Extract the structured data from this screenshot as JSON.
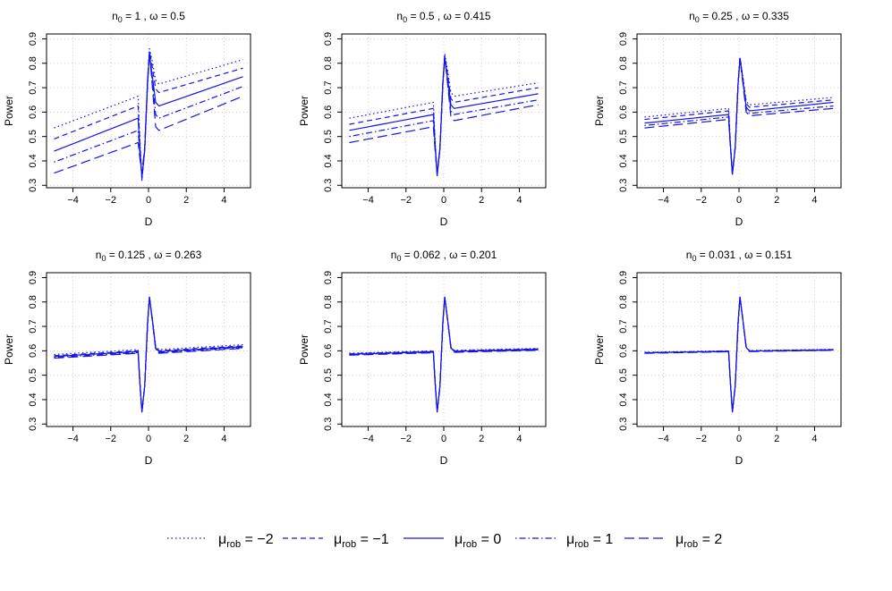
{
  "figure": {
    "legend_position": "bottom",
    "line_color": "#1414E6",
    "grid_color": "#BEBEBE",
    "legend": {
      "symbol": "μ",
      "subscript": "rob",
      "items": [
        {
          "value": "−2",
          "dash": "dotted"
        },
        {
          "value": "−1",
          "dash": "dashed"
        },
        {
          "value": "0",
          "dash": "solid"
        },
        {
          "value": "1",
          "dash": "dotdash"
        },
        {
          "value": "2",
          "dash": "longdash"
        }
      ]
    }
  },
  "chart_data": [
    {
      "type": "line",
      "title": {
        "n0": "1",
        "omega": "0.5"
      },
      "xlabel": "D",
      "ylabel": "Power",
      "xlim": [
        -5.4,
        5.4
      ],
      "ylim": [
        0.29,
        0.92
      ],
      "xticks": [
        -4,
        -2,
        0,
        2,
        4
      ],
      "yticks": [
        0.3,
        0.4,
        0.5,
        0.6,
        0.7,
        0.8,
        0.9
      ],
      "grid": true,
      "series": [
        {
          "name": "μrob = −2",
          "mu": -2,
          "left": [
            0.535,
            0.665
          ],
          "right": [
            0.715,
            0.815
          ],
          "dip": 0.32,
          "peak": 0.86
        },
        {
          "name": "μrob = −1",
          "mu": -1,
          "left": [
            0.49,
            0.625
          ],
          "right": [
            0.68,
            0.78
          ],
          "dip": 0.325,
          "peak": 0.85
        },
        {
          "name": "μrob = 0",
          "mu": 0,
          "left": [
            0.44,
            0.575
          ],
          "right": [
            0.625,
            0.745
          ],
          "dip": 0.33,
          "peak": 0.83
        },
        {
          "name": "μrob = 1",
          "mu": 1,
          "left": [
            0.395,
            0.525
          ],
          "right": [
            0.575,
            0.705
          ],
          "dip": 0.34,
          "peak": 0.84
        },
        {
          "name": "μrob = 2",
          "mu": 2,
          "left": [
            0.35,
            0.475
          ],
          "right": [
            0.525,
            0.665
          ],
          "dip": 0.35,
          "peak": 0.85
        }
      ]
    },
    {
      "type": "line",
      "title": {
        "n0": "0.5",
        "omega": "0.415"
      },
      "xlabel": "D",
      "ylabel": "Power",
      "xlim": [
        -5.4,
        5.4
      ],
      "ylim": [
        0.29,
        0.92
      ],
      "xticks": [
        -4,
        -2,
        0,
        2,
        4
      ],
      "yticks": [
        0.3,
        0.4,
        0.5,
        0.6,
        0.7,
        0.8,
        0.9
      ],
      "grid": true,
      "series": [
        {
          "name": "μrob = −2",
          "mu": -2,
          "left": [
            0.575,
            0.64
          ],
          "right": [
            0.665,
            0.72
          ],
          "dip": 0.34,
          "peak": 0.84
        },
        {
          "name": "μrob = −1",
          "mu": -1,
          "left": [
            0.55,
            0.615
          ],
          "right": [
            0.64,
            0.7
          ],
          "dip": 0.34,
          "peak": 0.83
        },
        {
          "name": "μrob = 0",
          "mu": 0,
          "left": [
            0.525,
            0.59
          ],
          "right": [
            0.615,
            0.675
          ],
          "dip": 0.34,
          "peak": 0.82
        },
        {
          "name": "μrob = 1",
          "mu": 1,
          "left": [
            0.5,
            0.565
          ],
          "right": [
            0.59,
            0.65
          ],
          "dip": 0.345,
          "peak": 0.825
        },
        {
          "name": "μrob = 2",
          "mu": 2,
          "left": [
            0.475,
            0.54
          ],
          "right": [
            0.565,
            0.63
          ],
          "dip": 0.35,
          "peak": 0.83
        }
      ]
    },
    {
      "type": "line",
      "title": {
        "n0": "0.25",
        "omega": "0.335"
      },
      "xlabel": "D",
      "ylabel": "Power",
      "xlim": [
        -5.4,
        5.4
      ],
      "ylim": [
        0.29,
        0.92
      ],
      "xticks": [
        -4,
        -2,
        0,
        2,
        4
      ],
      "yticks": [
        0.3,
        0.4,
        0.5,
        0.6,
        0.7,
        0.8,
        0.9
      ],
      "grid": true,
      "series": [
        {
          "name": "μrob = −2",
          "mu": -2,
          "left": [
            0.58,
            0.615
          ],
          "right": [
            0.63,
            0.66
          ],
          "dip": 0.345,
          "peak": 0.825
        },
        {
          "name": "μrob = −1",
          "mu": -1,
          "left": [
            0.57,
            0.605
          ],
          "right": [
            0.62,
            0.65
          ],
          "dip": 0.345,
          "peak": 0.825
        },
        {
          "name": "μrob = 0",
          "mu": 0,
          "left": [
            0.555,
            0.59
          ],
          "right": [
            0.605,
            0.64
          ],
          "dip": 0.345,
          "peak": 0.82
        },
        {
          "name": "μrob = 1",
          "mu": 1,
          "left": [
            0.545,
            0.58
          ],
          "right": [
            0.595,
            0.625
          ],
          "dip": 0.35,
          "peak": 0.82
        },
        {
          "name": "μrob = 2",
          "mu": 2,
          "left": [
            0.535,
            0.57
          ],
          "right": [
            0.585,
            0.615
          ],
          "dip": 0.35,
          "peak": 0.82
        }
      ]
    },
    {
      "type": "line",
      "title": {
        "n0": "0.125",
        "omega": "0.263"
      },
      "xlabel": "D",
      "ylabel": "Power",
      "xlim": [
        -5.4,
        5.4
      ],
      "ylim": [
        0.29,
        0.92
      ],
      "xticks": [
        -4,
        -2,
        0,
        2,
        4
      ],
      "yticks": [
        0.3,
        0.4,
        0.5,
        0.6,
        0.7,
        0.8,
        0.9
      ],
      "grid": true,
      "series": [
        {
          "name": "μrob = −2",
          "mu": -2,
          "left": [
            0.585,
            0.605
          ],
          "right": [
            0.605,
            0.625
          ],
          "dip": 0.35,
          "peak": 0.82
        },
        {
          "name": "μrob = −1",
          "mu": -1,
          "left": [
            0.58,
            0.6
          ],
          "right": [
            0.6,
            0.62
          ],
          "dip": 0.35,
          "peak": 0.82
        },
        {
          "name": "μrob = 0",
          "mu": 0,
          "left": [
            0.577,
            0.597
          ],
          "right": [
            0.597,
            0.617
          ],
          "dip": 0.35,
          "peak": 0.82
        },
        {
          "name": "μrob = 1",
          "mu": 1,
          "left": [
            0.573,
            0.593
          ],
          "right": [
            0.593,
            0.613
          ],
          "dip": 0.35,
          "peak": 0.82
        },
        {
          "name": "μrob = 2",
          "mu": 2,
          "left": [
            0.57,
            0.59
          ],
          "right": [
            0.59,
            0.61
          ],
          "dip": 0.35,
          "peak": 0.82
        }
      ]
    },
    {
      "type": "line",
      "title": {
        "n0": "0.062",
        "omega": "0.201"
      },
      "xlabel": "D",
      "ylabel": "Power",
      "xlim": [
        -5.4,
        5.4
      ],
      "ylim": [
        0.29,
        0.92
      ],
      "xticks": [
        -4,
        -2,
        0,
        2,
        4
      ],
      "yticks": [
        0.3,
        0.4,
        0.5,
        0.6,
        0.7,
        0.8,
        0.9
      ],
      "grid": true,
      "series": [
        {
          "name": "μrob = −2",
          "mu": -2,
          "left": [
            0.59,
            0.6
          ],
          "right": [
            0.602,
            0.61
          ],
          "dip": 0.35,
          "peak": 0.82
        },
        {
          "name": "μrob = −1",
          "mu": -1,
          "left": [
            0.588,
            0.598
          ],
          "right": [
            0.6,
            0.608
          ],
          "dip": 0.35,
          "peak": 0.82
        },
        {
          "name": "μrob = 0",
          "mu": 0,
          "left": [
            0.586,
            0.596
          ],
          "right": [
            0.598,
            0.606
          ],
          "dip": 0.35,
          "peak": 0.82
        },
        {
          "name": "μrob = 1",
          "mu": 1,
          "left": [
            0.584,
            0.594
          ],
          "right": [
            0.596,
            0.604
          ],
          "dip": 0.35,
          "peak": 0.82
        },
        {
          "name": "μrob = 2",
          "mu": 2,
          "left": [
            0.582,
            0.592
          ],
          "right": [
            0.594,
            0.602
          ],
          "dip": 0.35,
          "peak": 0.82
        }
      ]
    },
    {
      "type": "line",
      "title": {
        "n0": "0.031",
        "omega": "0.151"
      },
      "xlabel": "D",
      "ylabel": "Power",
      "xlim": [
        -5.4,
        5.4
      ],
      "ylim": [
        0.29,
        0.92
      ],
      "xticks": [
        -4,
        -2,
        0,
        2,
        4
      ],
      "yticks": [
        0.3,
        0.4,
        0.5,
        0.6,
        0.7,
        0.8,
        0.9
      ],
      "grid": true,
      "series": [
        {
          "name": "μrob = −2",
          "mu": -2,
          "left": [
            0.594,
            0.6
          ],
          "right": [
            0.601,
            0.606
          ],
          "dip": 0.35,
          "peak": 0.82
        },
        {
          "name": "μrob = −1",
          "mu": -1,
          "left": [
            0.593,
            0.599
          ],
          "right": [
            0.6,
            0.605
          ],
          "dip": 0.35,
          "peak": 0.82
        },
        {
          "name": "μrob = 0",
          "mu": 0,
          "left": [
            0.592,
            0.598
          ],
          "right": [
            0.599,
            0.604
          ],
          "dip": 0.35,
          "peak": 0.82
        },
        {
          "name": "μrob = 1",
          "mu": 1,
          "left": [
            0.591,
            0.597
          ],
          "right": [
            0.598,
            0.603
          ],
          "dip": 0.35,
          "peak": 0.82
        },
        {
          "name": "μrob = 2",
          "mu": 2,
          "left": [
            0.59,
            0.596
          ],
          "right": [
            0.597,
            0.602
          ],
          "dip": 0.35,
          "peak": 0.82
        }
      ]
    }
  ]
}
